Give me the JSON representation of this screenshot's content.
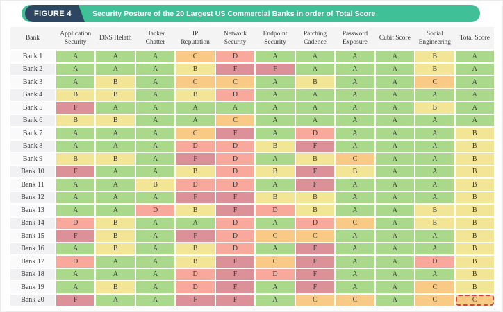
{
  "figure": {
    "badge_label": "FIGURE 4",
    "title": "Security Posture of the 20 Largest US Commercial Banks in order of Total Score"
  },
  "colors": {
    "banner": "#3fc096",
    "badge": "#2d4763",
    "header_strip": "#f4f4f5",
    "grade_A": "#abd98c",
    "grade_B": "#f3e596",
    "grade_C": "#f8ca85",
    "grade_D": "#f8a99b",
    "grade_F": "#dc9097",
    "highlight_border": "#e0403a"
  },
  "chart_data": {
    "type": "heatmap",
    "title": "Security Posture of the 20 Largest US Commercial Banks in order of Total Score",
    "figure_label": "FIGURE 4",
    "row_header": "Bank",
    "columns": [
      "Application Security",
      "DNS Helath",
      "Hacker Chatter",
      "IP Reputation",
      "Network Security",
      "Endpoint Security",
      "Patching Cadence",
      "Password Exposure",
      "Cubit Score",
      "Social Engineering",
      "Total Score"
    ],
    "rows": [
      "Bank 1",
      "Bank 2",
      "Bank 3",
      "Bank 4",
      "Bank 5",
      "Bank 6",
      "Bank 7",
      "Bank 8",
      "Bank 9",
      "Bank 10",
      "Bank 11",
      "Bank 12",
      "Bank 13",
      "Bank 14",
      "Bank 15",
      "Bank 16",
      "Bank 17",
      "Bank 18",
      "Bank 19",
      "Bank 20"
    ],
    "values": [
      [
        "A",
        "A",
        "A",
        "C",
        "D",
        "A",
        "A",
        "A",
        "A",
        "B",
        "A"
      ],
      [
        "A",
        "A",
        "A",
        "B",
        "F",
        "F",
        "A",
        "A",
        "A",
        "B",
        "A"
      ],
      [
        "A",
        "B",
        "A",
        "C",
        "C",
        "A",
        "B",
        "A",
        "A",
        "C",
        "A"
      ],
      [
        "B",
        "B",
        "A",
        "B",
        "D",
        "A",
        "A",
        "A",
        "A",
        "A",
        "A"
      ],
      [
        "F",
        "A",
        "A",
        "A",
        "A",
        "A",
        "A",
        "A",
        "A",
        "B",
        "A"
      ],
      [
        "B",
        "B",
        "A",
        "A",
        "C",
        "A",
        "A",
        "A",
        "A",
        "A",
        "A"
      ],
      [
        "A",
        "A",
        "A",
        "C",
        "F",
        "A",
        "D",
        "A",
        "A",
        "A",
        "B"
      ],
      [
        "A",
        "A",
        "A",
        "D",
        "D",
        "B",
        "F",
        "A",
        "A",
        "A",
        "B"
      ],
      [
        "B",
        "B",
        "A",
        "F",
        "D",
        "A",
        "B",
        "C",
        "A",
        "A",
        "B"
      ],
      [
        "F",
        "A",
        "A",
        "B",
        "D",
        "B",
        "F",
        "B",
        "A",
        "A",
        "B"
      ],
      [
        "A",
        "A",
        "B",
        "D",
        "D",
        "A",
        "F",
        "A",
        "A",
        "A",
        "B"
      ],
      [
        "A",
        "A",
        "A",
        "F",
        "F",
        "B",
        "B",
        "A",
        "A",
        "A",
        "B"
      ],
      [
        "A",
        "A",
        "D",
        "B",
        "F",
        "D",
        "B",
        "A",
        "A",
        "B",
        "B"
      ],
      [
        "D",
        "B",
        "A",
        "A",
        "D",
        "A",
        "D",
        "C",
        "A",
        "B",
        "B"
      ],
      [
        "F",
        "B",
        "A",
        "F",
        "D",
        "C",
        "C",
        "A",
        "A",
        "A",
        "B"
      ],
      [
        "A",
        "B",
        "A",
        "B",
        "D",
        "A",
        "F",
        "A",
        "A",
        "A",
        "B"
      ],
      [
        "D",
        "A",
        "A",
        "B",
        "F",
        "C",
        "F",
        "A",
        "A",
        "D",
        "B"
      ],
      [
        "A",
        "A",
        "A",
        "D",
        "F",
        "D",
        "F",
        "A",
        "A",
        "A",
        "B"
      ],
      [
        "A",
        "B",
        "A",
        "D",
        "F",
        "A",
        "F",
        "A",
        "A",
        "C",
        "B"
      ],
      [
        "F",
        "A",
        "A",
        "F",
        "F",
        "A",
        "C",
        "C",
        "A",
        "C",
        "C"
      ]
    ],
    "grade_scale": [
      "A",
      "B",
      "C",
      "D",
      "F"
    ],
    "highlight": {
      "row_index": 19,
      "col_index": 10,
      "row": "Bank 20",
      "column": "Total Score",
      "value": "C"
    }
  }
}
